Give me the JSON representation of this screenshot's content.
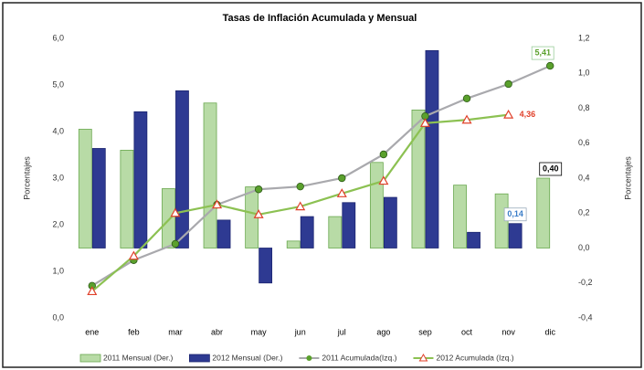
{
  "chart_data": {
    "type": "bar",
    "title": "Tasas de Inflación Acumulada y Mensual",
    "ylabel": "Porcentajes",
    "y2label": "Porcentajes",
    "categories": [
      "ene",
      "feb",
      "mar",
      "abr",
      "may",
      "jun",
      "jul",
      "ago",
      "sep",
      "oct",
      "nov",
      "dic"
    ],
    "ylim": [
      0,
      6
    ],
    "yticks": [
      {
        "value": 0,
        "label": "0,0"
      },
      {
        "value": 1,
        "label": "1,0"
      },
      {
        "value": 2,
        "label": "2,0"
      },
      {
        "value": 3,
        "label": "3,0"
      },
      {
        "value": 4,
        "label": "4,0"
      },
      {
        "value": 5,
        "label": "5,0"
      },
      {
        "value": 6,
        "label": "6,0"
      }
    ],
    "y2lim": [
      -0.4,
      1.2
    ],
    "y2ticks": [
      {
        "value": -0.4,
        "label": "-0,4"
      },
      {
        "value": -0.2,
        "label": "-0,2"
      },
      {
        "value": 0,
        "label": "0,0"
      },
      {
        "value": 0.2,
        "label": "0,2"
      },
      {
        "value": 0.4,
        "label": "0,4"
      },
      {
        "value": 0.6,
        "label": "0,6"
      },
      {
        "value": 0.8,
        "label": "0,8"
      },
      {
        "value": 1,
        "label": "1,0"
      },
      {
        "value": 1.2,
        "label": "1,2"
      }
    ],
    "grid": false,
    "legend": "bottom",
    "series": [
      {
        "name": "2011 Mensual (Der.)",
        "type": "bar",
        "axis": "y2",
        "color": "#b8dba6",
        "values": [
          0.68,
          0.56,
          0.34,
          0.83,
          0.35,
          0.04,
          0.18,
          0.49,
          0.79,
          0.36,
          0.31,
          0.4
        ],
        "value_labels": [
          null,
          null,
          null,
          null,
          null,
          null,
          null,
          null,
          null,
          null,
          null,
          "0,40"
        ]
      },
      {
        "name": "2012 Mensual (Der.)",
        "type": "bar",
        "axis": "y2",
        "color": "#2e3a92",
        "values": [
          0.57,
          0.78,
          0.9,
          0.16,
          -0.2,
          0.18,
          0.26,
          0.29,
          1.13,
          0.09,
          0.14,
          null
        ],
        "value_labels": [
          null,
          null,
          null,
          null,
          null,
          null,
          null,
          null,
          null,
          null,
          "0,14",
          null
        ]
      },
      {
        "name": "2011 Acumulada(Izq.)",
        "type": "line",
        "color": "#a9a9ad",
        "marker_color": "#5aa02c",
        "values": [
          0.69,
          1.24,
          1.59,
          2.43,
          2.76,
          2.82,
          3.0,
          3.51,
          4.33,
          4.71,
          5.02,
          5.41
        ],
        "value_labels": [
          null,
          null,
          null,
          null,
          null,
          null,
          null,
          null,
          null,
          null,
          null,
          "5,41"
        ]
      },
      {
        "name": "2012 Acumulada (Izq.)",
        "type": "line",
        "color": "#8cc152",
        "marker_color": "#e0402a",
        "values": [
          0.57,
          1.33,
          2.25,
          2.43,
          2.22,
          2.39,
          2.67,
          2.94,
          4.18,
          4.25,
          4.36,
          null
        ],
        "value_labels": [
          null,
          null,
          null,
          null,
          null,
          null,
          null,
          null,
          null,
          null,
          "4,36",
          null
        ]
      }
    ]
  }
}
